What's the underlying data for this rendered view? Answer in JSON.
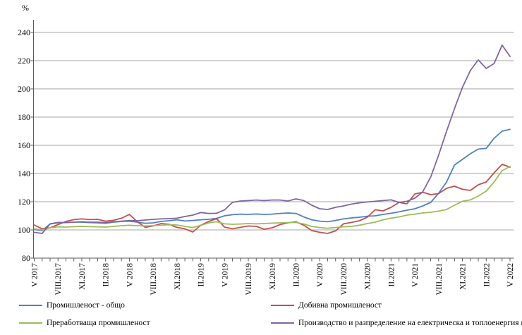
{
  "chart_data": {
    "type": "line",
    "ylabel": "%",
    "ylim": [
      80,
      240
    ],
    "ytick_step": 20,
    "y_tick_labels": [
      "80",
      "100",
      "120",
      "140",
      "160",
      "180",
      "200",
      "220",
      "240"
    ],
    "grid": "horizontal-only",
    "legend_position": "bottom-two-columns",
    "n_points": 61,
    "x_tick_every_months": 3,
    "x_tick_labels": [
      "V 2017",
      "VIII.2017",
      "XI.2017",
      "II.2018",
      "V 2018",
      "VIII.2018",
      "XI.2018",
      "II.2019",
      "V 2019",
      "VIII.2019",
      "XI.2019",
      "II.2020",
      "V 2020",
      "VIII.2020",
      "XI.2020",
      "II.2021",
      "V 2021",
      "VIII.2021",
      "XI.2021",
      "II.2022",
      "V 2022"
    ],
    "series": [
      {
        "name": "Промишленост - общо",
        "color": "#4F81BD",
        "values": [
          100.3,
          99.5,
          104.2,
          105,
          105.2,
          105.5,
          105.5,
          105.2,
          105,
          104.7,
          105.5,
          106,
          106.2,
          105.5,
          104.7,
          105,
          106,
          106.5,
          107.2,
          106.3,
          106.7,
          107.2,
          107.5,
          108.2,
          110,
          110.8,
          111.2,
          111,
          111.3,
          111,
          111.2,
          111.7,
          112,
          111.7,
          109.2,
          107.2,
          106.2,
          105.8,
          106.7,
          107.8,
          108.5,
          109,
          109.7,
          110,
          111,
          111.8,
          112.8,
          114,
          115,
          117,
          119.5,
          126,
          134,
          146,
          150,
          154,
          157.3,
          157.8,
          165,
          170,
          171.3
        ]
      },
      {
        "name": "Добивна промишленост",
        "color": "#C0504D",
        "values": [
          103.5,
          100.8,
          101.5,
          103.8,
          106,
          107.3,
          107.8,
          107.3,
          107.5,
          106.2,
          106.8,
          108.3,
          111,
          105.8,
          101.8,
          102.8,
          104.5,
          104,
          101.8,
          100.8,
          98.5,
          103.3,
          106,
          108,
          102,
          100.8,
          101.8,
          102.8,
          102.5,
          100.5,
          101.5,
          103.8,
          105,
          105.8,
          103.3,
          99.5,
          98.3,
          97.5,
          99.3,
          104.3,
          105.3,
          106.5,
          109,
          114.3,
          113.5,
          116,
          119.5,
          118.5,
          125.5,
          126.7,
          125,
          125.8,
          129.5,
          131,
          128.8,
          128,
          132,
          134,
          140.5,
          146.5,
          144.5
        ]
      },
      {
        "name": "Преработваща промишленост",
        "color": "#9BBB59",
        "values": [
          100.8,
          100,
          101.5,
          102.2,
          102,
          102.3,
          102.5,
          102.3,
          102.2,
          102,
          102.5,
          103,
          103.3,
          103,
          102.8,
          103,
          103.3,
          103.7,
          103.5,
          102.5,
          101.7,
          103.2,
          105,
          105.8,
          104.3,
          104,
          104.2,
          104.5,
          104.3,
          104.5,
          104.8,
          105,
          105.2,
          105.3,
          104.2,
          102.5,
          101.7,
          101.2,
          101.7,
          102.2,
          102.5,
          103.3,
          104.5,
          105.5,
          107.2,
          108.3,
          109.2,
          110.5,
          111.2,
          112,
          112.5,
          113.3,
          114.5,
          117.5,
          120.3,
          121.3,
          124,
          127.5,
          134,
          142,
          145
        ]
      },
      {
        "name": "Производство и разпределение на електрическа и топлоенергия  и газ",
        "color": "#8064A2",
        "values": [
          98.3,
          97.5,
          104.3,
          105.3,
          105.3,
          105.5,
          105.8,
          105.5,
          105.5,
          105.2,
          105.8,
          106.2,
          106.7,
          106.5,
          107,
          107.5,
          107.8,
          108,
          108.3,
          109.5,
          110.5,
          112.3,
          111.7,
          111.8,
          114.2,
          119.5,
          120.5,
          120.8,
          121.2,
          120.8,
          121.2,
          121.2,
          120.5,
          122,
          120.8,
          117.5,
          115,
          114.5,
          116,
          117,
          118.3,
          119.2,
          119.8,
          120.3,
          120.8,
          121.3,
          119.5,
          120.3,
          122.5,
          127,
          137.5,
          153,
          170,
          186,
          201,
          213,
          220.5,
          214.5,
          218,
          231,
          223
        ]
      }
    ],
    "colors": {
      "gridline": "#A6A6A6",
      "axis": "#595959",
      "text": "#000000",
      "background": "#FFFFFF"
    }
  }
}
